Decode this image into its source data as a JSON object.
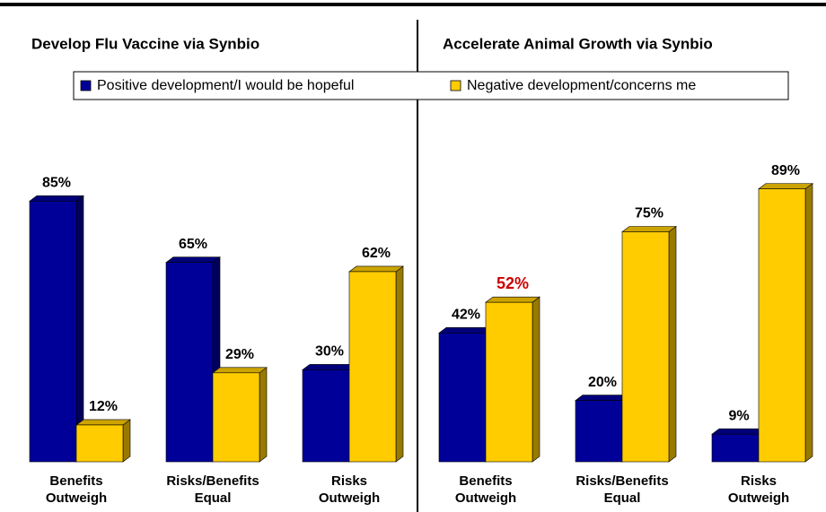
{
  "chart_data": [
    {
      "type": "bar",
      "title": "Develop Flu Vaccine via Synbio",
      "categories": [
        [
          "Benefits",
          "Outweigh"
        ],
        [
          "Risks/Benefits",
          "Equal"
        ],
        [
          "Risks",
          "Outweigh"
        ]
      ],
      "series": [
        {
          "name": "Positive development/I would be hopeful",
          "color": "#000099",
          "values": [
            85,
            65,
            30
          ],
          "value_labels": [
            "85%",
            "65%",
            "30%"
          ]
        },
        {
          "name": "Negative development/concerns me",
          "color": "#ffcc00",
          "values": [
            12,
            29,
            62
          ],
          "value_labels": [
            "12%",
            "29%",
            "62%"
          ]
        }
      ]
    },
    {
      "type": "bar",
      "title": "Accelerate Animal Growth via Synbio",
      "categories": [
        [
          "Benefits",
          "Outweigh"
        ],
        [
          "Risks/Benefits",
          "Equal"
        ],
        [
          "Risks",
          "Outweigh"
        ]
      ],
      "series": [
        {
          "color": "#000099",
          "values": [
            42,
            20,
            9
          ],
          "value_labels": [
            "42%",
            "20%",
            "9%"
          ]
        },
        {
          "color": "#ffcc00",
          "values": [
            52,
            75,
            89
          ],
          "value_labels": [
            "52%",
            "75%",
            "89%"
          ],
          "value_label_colors": [
            "#cc0000",
            "#000000",
            "#000000"
          ]
        }
      ]
    }
  ]
}
